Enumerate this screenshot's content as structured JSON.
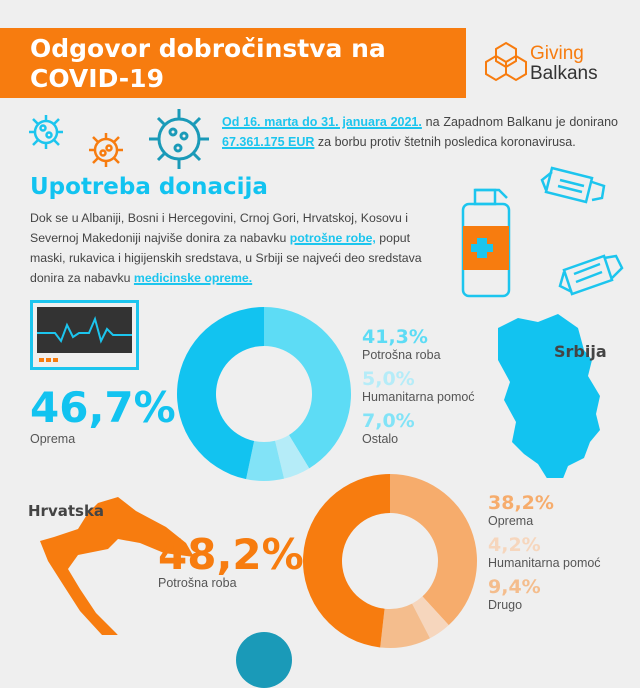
{
  "header": {
    "title_line1": "Odgovor dobročinstva na",
    "title_line2": "COVID-19",
    "logo_line1": "Giving",
    "logo_line2": "Balkans"
  },
  "intro": {
    "highlight_dates": "Od 16. marta do 31. januara 2021.",
    "text1": " na Zapadnom Balkanu je donirano ",
    "highlight_amount": "67.361.175 EUR",
    "text2": " za borbu protiv štetnih posledica koronavirusa."
  },
  "section": {
    "title": "Upotreba donacija",
    "text1": "Dok se u Albaniji, Bosni i Hercegovini, Crnoj Gori, Hrvatskoj, Kosovu i Severnoj Makedoniji najviše donira za nabavku ",
    "highlight1": "potrošne robe,",
    "text2": " poput maski, rukavica i higijenskih sredstava, u Srbiji se najveći deo sredstava donira za nabavku ",
    "highlight2": "medicinske opreme."
  },
  "colors": {
    "orange": "#f77c0f",
    "blue": "#12c3f0"
  },
  "chart_data": [
    {
      "type": "pie",
      "title": "Srbija",
      "donut": true,
      "slices": [
        {
          "label": "Potrošna roba",
          "value": 41.3,
          "value_label": "41,3%",
          "color": "#5ddcf5"
        },
        {
          "label": "Humanitarna pomoć",
          "value": 5.0,
          "value_label": "5,0%",
          "color": "#b5ecf8"
        },
        {
          "label": "Ostalo",
          "value": 7.0,
          "value_label": "7,0%",
          "color": "#82e3f7"
        },
        {
          "label": "Oprema",
          "value": 46.7,
          "value_label": "46,7%",
          "color": "#12c3f0"
        }
      ]
    },
    {
      "type": "pie",
      "title": "Hrvatska",
      "donut": true,
      "slices": [
        {
          "label": "Oprema",
          "value": 38.2,
          "value_label": "38,2%",
          "color": "#f6ac6c"
        },
        {
          "label": "Humanitarna pomoć",
          "value": 4.2,
          "value_label": "4,2%",
          "color": "#f6d6bd"
        },
        {
          "label": "Drugo",
          "value": 9.4,
          "value_label": "9,4%",
          "color": "#f4bd8d"
        },
        {
          "label": "Potrošna roba",
          "value": 48.2,
          "value_label": "48,2%",
          "color": "#f77c0f"
        }
      ]
    }
  ]
}
